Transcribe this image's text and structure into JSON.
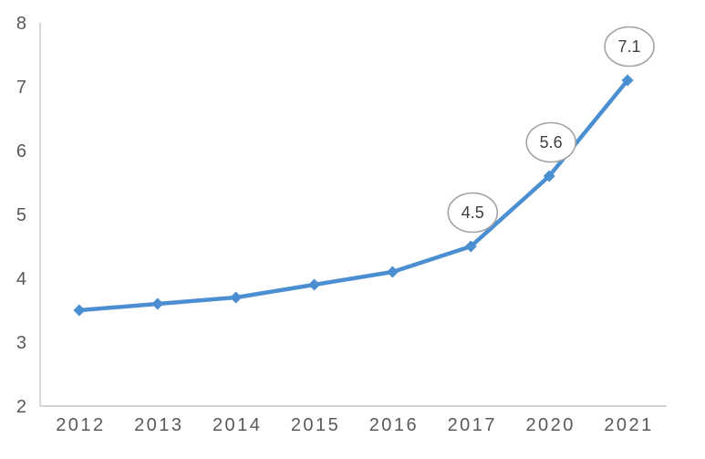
{
  "chart_data": {
    "type": "line",
    "title": "",
    "xlabel": "",
    "ylabel": "",
    "categories": [
      "2012",
      "2013",
      "2014",
      "2015",
      "2016",
      "2017",
      "2020",
      "2021"
    ],
    "series": [
      {
        "name": "value",
        "values": [
          3.5,
          3.6,
          3.7,
          3.9,
          4.1,
          4.5,
          5.6,
          7.1
        ]
      }
    ],
    "y_ticks": [
      "8",
      "7",
      "6",
      "5",
      "4",
      "3",
      "2"
    ],
    "ylim": [
      2,
      8
    ],
    "grid": false,
    "legend_position": "none",
    "marker_shape": "diamond",
    "callouts": [
      {
        "category": "2017",
        "label": "4.5"
      },
      {
        "category": "2020",
        "label": "5.6"
      },
      {
        "category": "2021",
        "label": "7.1"
      }
    ],
    "colors": {
      "line": "#4b8fd2",
      "marker": "#4b8fd2",
      "axis_line": "#c6c6c6",
      "tick_label": "#595959",
      "callout_border": "#a3a3a3",
      "callout_fill": "#ffffff",
      "callout_text": "#404040",
      "background": "#ffffff"
    }
  }
}
